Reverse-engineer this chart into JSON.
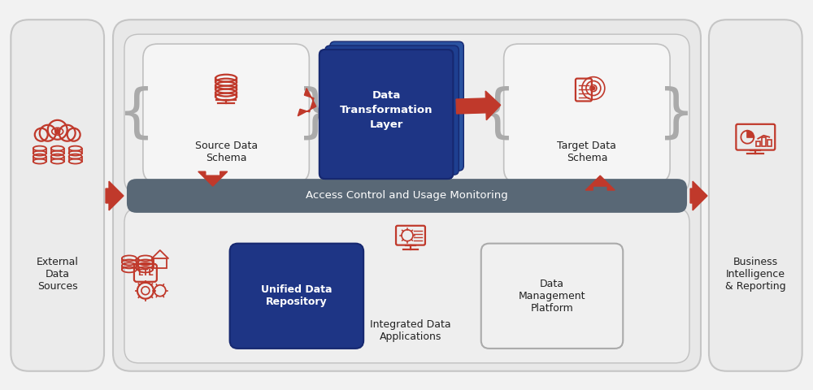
{
  "bg_color": "#f2f2f2",
  "arrow_color": "#c0392b",
  "dark_blue": "#1e3a8a",
  "slate_gray": "#556b7a",
  "white": "#ffffff",
  "panel_bg": "#ebebeb",
  "panel_edge": "#c8c8c8",
  "inner_box_bg": "#f5f5f5",
  "inner_box_edge": "#c0c0c0",
  "bottom_box_bg": "#f0f0f0",
  "left_panel_label": "External\nData\nSources",
  "right_panel_label": "Business\nIntelligence\n& Reporting",
  "source_schema_label": "Source Data\nSchema",
  "target_schema_label": "Target Data\nSchema",
  "transform_layer_label": "Data\nTransformation\nLayer",
  "access_control_label": "Access Control and Usage Monitoring",
  "unified_repo_label": "Unified Data\nRepository",
  "integrated_apps_label": "Integrated Data\nApplications",
  "data_mgmt_label": "Data\nManagement\nPlatform"
}
